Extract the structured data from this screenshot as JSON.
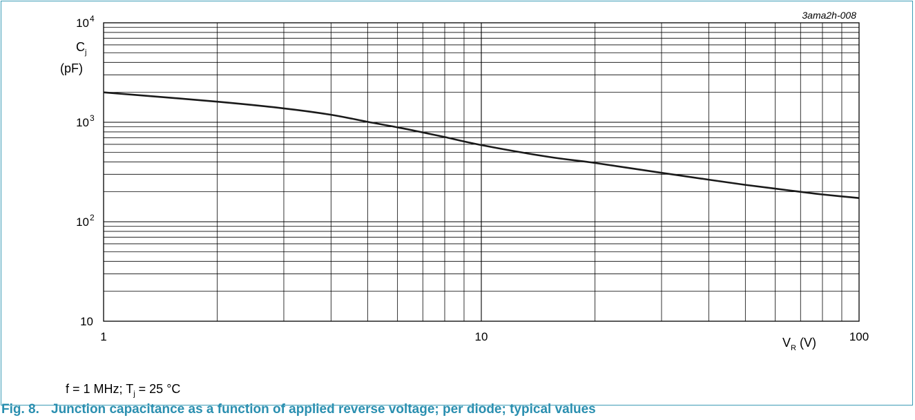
{
  "figure_code": "3ama2h-008",
  "conditions": {
    "f": "f = 1 MHz; T",
    "sub": "j",
    "rest": " = 25 °C"
  },
  "caption": {
    "number": "Fig. 8.",
    "text": "Junction capacitance as a function of applied reverse voltage; per diode; typical values"
  },
  "colors": {
    "caption": "#2a8fb0",
    "frame": "#3a9bb5",
    "curve": "#1a1a1a",
    "grid": "#000000"
  },
  "chart_data": {
    "type": "line",
    "x_scale": "log",
    "y_scale": "log",
    "xlim": [
      1,
      100
    ],
    "ylim": [
      10,
      10000
    ],
    "grid": true,
    "xlabel": {
      "main": "V",
      "sub": "R",
      "unit": " (V)"
    },
    "ylabel": {
      "main": "C",
      "sub": "j",
      "unit": "(pF)"
    },
    "x_ticks": [
      {
        "value": 1,
        "label": "1"
      },
      {
        "value": 10,
        "label": "10"
      },
      {
        "value": 100,
        "label": "100"
      }
    ],
    "y_ticks": [
      {
        "value": 10,
        "base": "10",
        "exp": ""
      },
      {
        "value": 100,
        "base": "10",
        "exp": "2"
      },
      {
        "value": 1000,
        "base": "10",
        "exp": "3"
      },
      {
        "value": 10000,
        "base": "10",
        "exp": "4"
      }
    ],
    "series": [
      {
        "x": [
          1,
          2,
          3,
          4,
          5,
          6,
          7,
          8,
          10,
          15,
          20,
          30,
          40,
          50,
          60,
          70,
          80,
          100
        ],
        "y": [
          2000,
          1610,
          1380,
          1190,
          1010,
          890,
          790,
          710,
          590,
          450,
          390,
          310,
          265,
          235,
          215,
          200,
          188,
          173
        ]
      }
    ]
  }
}
